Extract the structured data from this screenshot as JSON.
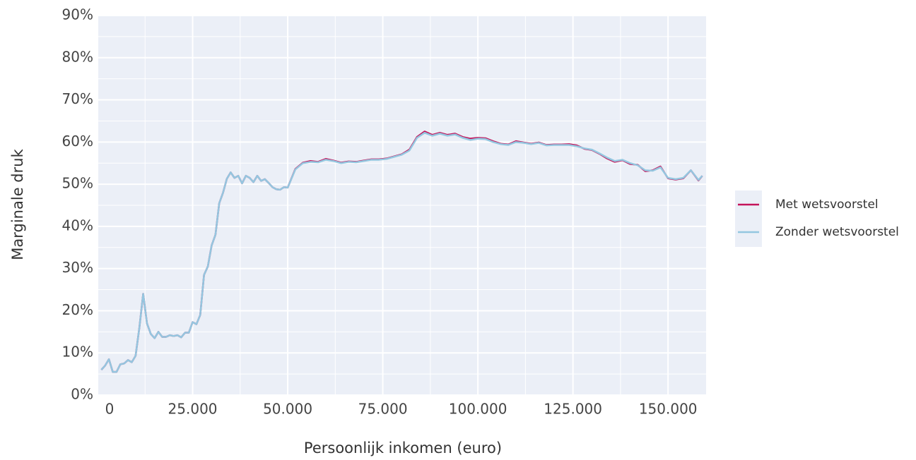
{
  "chart_data": {
    "type": "line",
    "x_label": "Persoonlijk inkomen (euro)",
    "y_label": "Marginale druk",
    "xlim": [
      0,
      160000
    ],
    "ylim": [
      0,
      90
    ],
    "xticks": [
      0,
      {
        "value": 25000,
        "label": "25.000"
      },
      {
        "value": 50000,
        "label": "50.000"
      },
      {
        "value": 75000,
        "label": "75.000"
      },
      {
        "value": 100000,
        "label": "100.000"
      },
      {
        "value": 125000,
        "label": "125.000"
      },
      {
        "value": 150000,
        "label": "150.000"
      }
    ],
    "yticks": [
      {
        "value": 0,
        "label": "0%"
      },
      {
        "value": 10,
        "label": "10%"
      },
      {
        "value": 20,
        "label": "20%"
      },
      {
        "value": 30,
        "label": "30%"
      },
      {
        "value": 40,
        "label": "40%"
      },
      {
        "value": 50,
        "label": "50%"
      },
      {
        "value": 60,
        "label": "60%"
      },
      {
        "value": 70,
        "label": "70%"
      },
      {
        "value": 80,
        "label": "80%"
      },
      {
        "value": 90,
        "label": "90%"
      }
    ],
    "grid": true,
    "legend": "right",
    "x": [
      1000,
      2000,
      3000,
      4000,
      5000,
      6000,
      7000,
      8000,
      9000,
      10000,
      11000,
      12000,
      13000,
      14000,
      15000,
      16000,
      17000,
      18000,
      19000,
      20000,
      21000,
      22000,
      23000,
      24000,
      25000,
      26000,
      27000,
      28000,
      29000,
      30000,
      31000,
      32000,
      33000,
      34000,
      35000,
      36000,
      37000,
      38000,
      39000,
      40000,
      41000,
      42000,
      43000,
      44000,
      45000,
      46000,
      47000,
      48000,
      49000,
      50000,
      52000,
      54000,
      56000,
      58000,
      60000,
      62000,
      64000,
      66000,
      68000,
      70000,
      72000,
      74000,
      76000,
      78000,
      80000,
      82000,
      84000,
      86000,
      88000,
      90000,
      92000,
      94000,
      96000,
      98000,
      100000,
      102000,
      104000,
      106000,
      108000,
      110000,
      112000,
      114000,
      116000,
      118000,
      120000,
      122000,
      124000,
      126000,
      128000,
      130000,
      132000,
      134000,
      136000,
      138000,
      140000,
      142000,
      144000,
      146000,
      148000,
      150000,
      152000,
      154000,
      156000,
      158000,
      159000
    ],
    "series": [
      {
        "name": "Met wetsvoorstel",
        "color": "#c4145a",
        "values": [
          6.0,
          7.0,
          8.5,
          5.5,
          5.5,
          7.3,
          7.5,
          8.3,
          7.8,
          9.3,
          16,
          24,
          17,
          14.5,
          13.5,
          15,
          13.8,
          13.8,
          14.2,
          14,
          14.2,
          13.7,
          14.8,
          14.8,
          17.3,
          16.8,
          19,
          28.5,
          30.5,
          35.5,
          38,
          45.5,
          48,
          51.3,
          52.8,
          51.5,
          52,
          50.2,
          52,
          51.5,
          50.5,
          52,
          50.8,
          51.2,
          50.3,
          49.3,
          48.8,
          48.7,
          49.3,
          49.2,
          53.6,
          55.1,
          55.5,
          55.3,
          56,
          55.6,
          55.1,
          55.4,
          55.3,
          55.6,
          55.9,
          55.9,
          56.1,
          56.6,
          57.1,
          58.2,
          61.2,
          62.5,
          61.7,
          62.2,
          61.7,
          62,
          61.2,
          60.8,
          61,
          60.9,
          60.2,
          59.6,
          59.4,
          60.2,
          59.9,
          59.6,
          59.9,
          59.3,
          59.4,
          59.4,
          59.5,
          59.2,
          58.4,
          58.1,
          57.2,
          56.1,
          55.3,
          55.7,
          54.8,
          54.6,
          53.1,
          53.3,
          54.2,
          51.4,
          51.1,
          51.4,
          53.3,
          50.9,
          52
        ],
        "width": 2.5
      },
      {
        "name": "Zonder wetsvoorstel",
        "color": "#94c7e0",
        "values": [
          6.0,
          7.0,
          8.5,
          5.5,
          5.5,
          7.3,
          7.5,
          8.3,
          7.8,
          9.3,
          16,
          24,
          17,
          14.5,
          13.5,
          15,
          13.8,
          13.8,
          14.2,
          14,
          14.2,
          13.7,
          14.8,
          14.8,
          17.3,
          16.8,
          19,
          28.5,
          30.5,
          35.5,
          38,
          45.5,
          48,
          51.3,
          52.8,
          51.5,
          52,
          50.2,
          52,
          51.5,
          50.5,
          52,
          50.8,
          51.2,
          50.3,
          49.3,
          48.8,
          48.7,
          49.3,
          49.2,
          53.5,
          55,
          55.3,
          55.2,
          55.8,
          55.5,
          55,
          55.3,
          55.2,
          55.5,
          55.8,
          55.8,
          56,
          56.5,
          57,
          58,
          61,
          62.2,
          61.5,
          62,
          61.5,
          61.8,
          61,
          60.5,
          60.8,
          60.7,
          60,
          59.5,
          59.3,
          60,
          59.8,
          59.5,
          59.8,
          59.2,
          59.3,
          59.3,
          59.3,
          59,
          58.5,
          58.2,
          57.3,
          56.3,
          55.5,
          55.8,
          55,
          54.5,
          53.3,
          53.2,
          54,
          51.5,
          51.2,
          51.5,
          53.3,
          51,
          52
        ],
        "width": 2.5
      }
    ],
    "panel_color": "#ebeff7"
  }
}
